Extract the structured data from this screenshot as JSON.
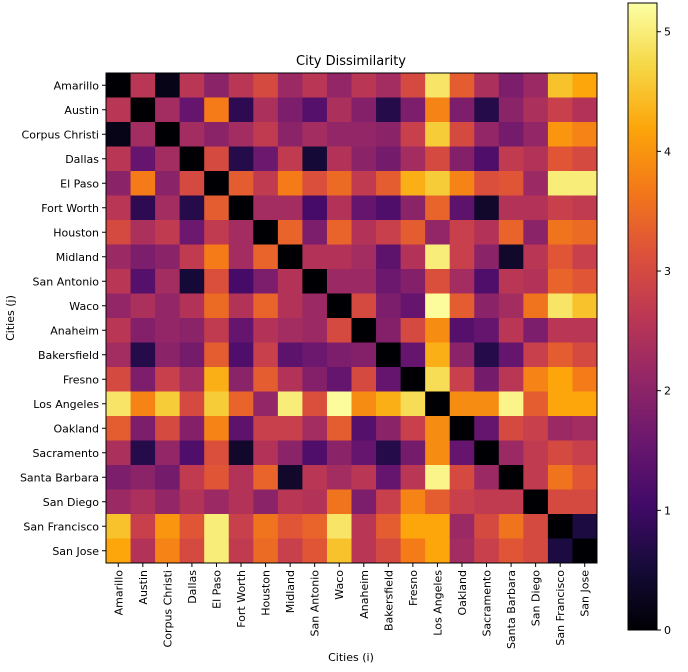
{
  "chart_data": {
    "type": "heatmap",
    "title": "City Dissimilarity",
    "xlabel": "Cities (i)",
    "ylabel": "Cities (j)",
    "colormap": "inferno",
    "colorbar": {
      "range": [
        0,
        5.24
      ],
      "ticks": [
        0,
        1,
        2,
        3,
        4,
        5
      ]
    },
    "categories": [
      "Amarillo",
      "Austin",
      "Corpus Christi",
      "Dallas",
      "El Paso",
      "Fort Worth",
      "Houston",
      "Midland",
      "San Antonio",
      "Waco",
      "Anaheim",
      "Bakersfield",
      "Fresno",
      "Los Angeles",
      "Oakland",
      "Sacramento",
      "Santa Barbara",
      "San Diego",
      "San Francisco",
      "San Jose"
    ],
    "values": [
      [
        0,
        2.6,
        0.2,
        2.6,
        2.0,
        2.6,
        3.0,
        2.2,
        2.6,
        2.1,
        2.6,
        2.3,
        3.0,
        4.9,
        3.3,
        2.4,
        1.8,
        2.2,
        4.5,
        4.2
      ],
      [
        2.6,
        0,
        2.3,
        1.5,
        3.7,
        0.8,
        2.4,
        1.8,
        1.3,
        2.4,
        1.9,
        0.7,
        1.8,
        3.8,
        1.8,
        0.7,
        2.0,
        2.4,
        2.8,
        2.5
      ],
      [
        0.2,
        2.3,
        0,
        2.3,
        2.0,
        2.3,
        2.7,
        2.0,
        2.3,
        2.1,
        2.1,
        2.0,
        2.8,
        4.6,
        3.0,
        2.1,
        1.7,
        2.1,
        4.0,
        3.8
      ],
      [
        2.6,
        1.5,
        2.3,
        0,
        3.0,
        0.7,
        1.6,
        2.7,
        0.5,
        2.5,
        2.0,
        1.7,
        2.3,
        3.0,
        1.9,
        1.2,
        2.7,
        2.5,
        3.2,
        3.0
      ],
      [
        2.0,
        3.7,
        2.0,
        3.0,
        0,
        3.3,
        2.7,
        3.7,
        3.1,
        3.5,
        2.7,
        3.3,
        4.3,
        4.6,
        3.8,
        3.1,
        3.2,
        2.2,
        5.0,
        5.0
      ],
      [
        2.6,
        0.8,
        2.3,
        0.7,
        3.3,
        0,
        2.3,
        2.3,
        1.1,
        2.5,
        1.5,
        1.2,
        2.0,
        3.4,
        1.4,
        0.4,
        2.5,
        2.5,
        2.8,
        2.7
      ],
      [
        3.0,
        2.4,
        2.7,
        1.6,
        2.7,
        2.3,
        0,
        3.4,
        1.8,
        3.4,
        2.5,
        2.8,
        3.3,
        2.1,
        2.8,
        2.5,
        3.4,
        2.0,
        3.6,
        3.5
      ],
      [
        2.2,
        1.8,
        2.0,
        2.7,
        3.7,
        2.3,
        3.4,
        0,
        2.5,
        2.5,
        2.3,
        1.4,
        2.5,
        5.0,
        2.8,
        2.0,
        0.4,
        2.6,
        3.2,
        2.8
      ],
      [
        2.6,
        1.3,
        2.3,
        0.5,
        3.1,
        1.1,
        1.8,
        2.5,
        0,
        2.2,
        2.2,
        1.6,
        1.9,
        3.1,
        2.3,
        1.2,
        2.6,
        2.5,
        3.4,
        3.2
      ],
      [
        2.1,
        2.4,
        2.1,
        2.5,
        3.5,
        2.5,
        3.4,
        2.5,
        2.2,
        0,
        3.0,
        1.8,
        1.5,
        5.2,
        3.3,
        2.0,
        2.3,
        3.6,
        4.9,
        4.5
      ],
      [
        2.6,
        1.9,
        2.1,
        2.0,
        2.7,
        1.5,
        2.5,
        2.3,
        2.2,
        3.0,
        0,
        1.9,
        3.0,
        3.9,
        1.3,
        1.5,
        2.6,
        1.8,
        2.6,
        2.6
      ],
      [
        2.3,
        0.7,
        2.0,
        1.7,
        3.3,
        1.2,
        2.8,
        1.4,
        1.6,
        1.8,
        1.9,
        0,
        1.5,
        4.3,
        2.0,
        0.7,
        1.5,
        2.8,
        3.3,
        3.0
      ],
      [
        3.0,
        1.8,
        2.8,
        2.3,
        4.3,
        2.0,
        3.3,
        2.5,
        1.9,
        1.5,
        3.0,
        1.5,
        0,
        4.8,
        2.8,
        1.7,
        2.6,
        3.8,
        4.2,
        3.7
      ],
      [
        4.9,
        3.8,
        4.6,
        3.0,
        4.6,
        3.4,
        2.1,
        5.0,
        3.1,
        5.2,
        3.9,
        4.3,
        4.8,
        0,
        3.9,
        3.9,
        5.1,
        3.3,
        4.2,
        4.2
      ],
      [
        3.3,
        1.8,
        3.0,
        1.9,
        3.8,
        1.4,
        2.8,
        2.8,
        2.3,
        3.3,
        1.3,
        2.0,
        2.8,
        3.9,
        0,
        1.5,
        3.0,
        2.8,
        2.2,
        2.3
      ],
      [
        2.4,
        0.7,
        2.1,
        1.2,
        3.1,
        0.4,
        2.5,
        2.0,
        1.2,
        2.0,
        1.5,
        0.7,
        1.7,
        3.9,
        1.5,
        0,
        2.2,
        2.7,
        3.0,
        2.8
      ],
      [
        1.8,
        2.0,
        1.7,
        2.7,
        3.2,
        2.5,
        3.4,
        0.4,
        2.6,
        2.3,
        2.6,
        1.5,
        2.6,
        5.1,
        3.0,
        2.2,
        0,
        2.7,
        3.6,
        3.2
      ],
      [
        2.2,
        2.4,
        2.1,
        2.5,
        2.2,
        2.5,
        2.0,
        2.6,
        2.5,
        3.6,
        1.8,
        2.8,
        3.8,
        3.3,
        2.8,
        2.7,
        2.7,
        0,
        3.0,
        3.0
      ],
      [
        4.5,
        2.8,
        4.0,
        3.2,
        5.0,
        2.8,
        3.6,
        3.2,
        3.4,
        4.9,
        2.6,
        3.3,
        4.2,
        4.2,
        2.2,
        3.0,
        3.6,
        3.0,
        0,
        0.6
      ],
      [
        4.2,
        2.5,
        3.8,
        3.0,
        5.0,
        2.7,
        3.5,
        2.8,
        3.2,
        4.5,
        2.6,
        3.0,
        3.7,
        4.2,
        2.3,
        2.8,
        3.2,
        3.0,
        0.6,
        0
      ]
    ]
  }
}
